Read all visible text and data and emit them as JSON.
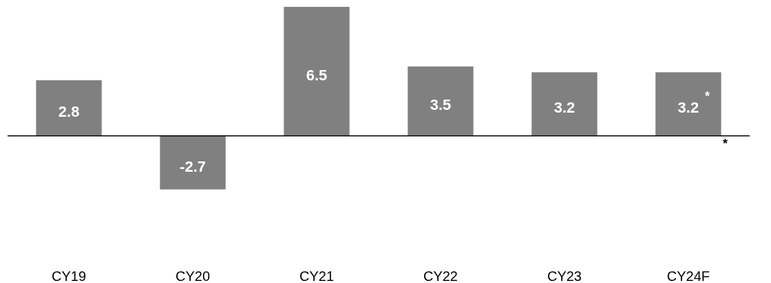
{
  "chart_data": {
    "type": "bar",
    "categories": [
      "CY19",
      "CY20",
      "CY21",
      "CY22",
      "CY23",
      "CY24F"
    ],
    "values": [
      2.8,
      -2.7,
      6.5,
      3.5,
      3.2,
      3.2
    ],
    "color": "#808080",
    "data_labels": true,
    "tick_labels": "x",
    "grid": false,
    "annotations": [
      "*",
      "*"
    ]
  }
}
